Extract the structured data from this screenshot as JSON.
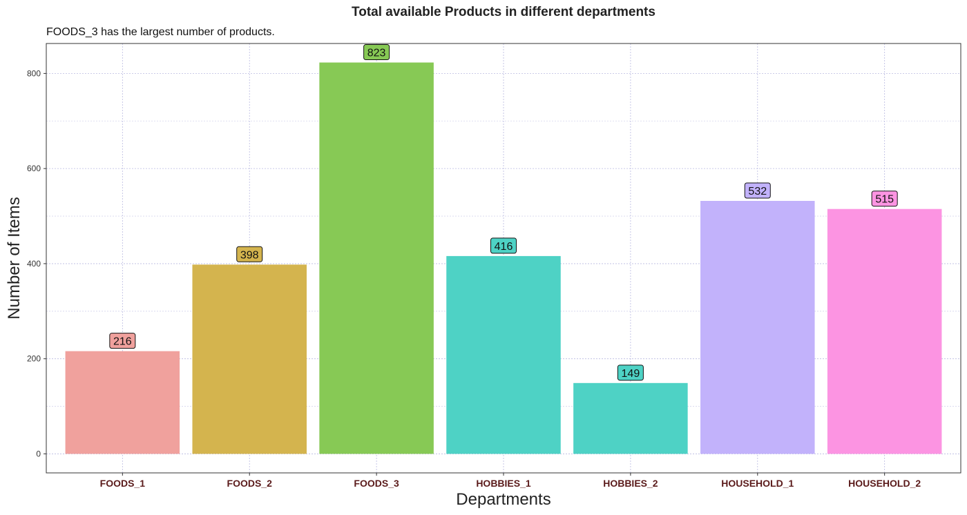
{
  "chart_data": {
    "type": "bar",
    "title": "Total available Products in different departments",
    "subtitle": "FOODS_3 has the largest number of products.",
    "xlabel": "Departments",
    "ylabel": "Number of Items",
    "categories": [
      "FOODS_1",
      "FOODS_2",
      "FOODS_3",
      "HOBBIES_1",
      "HOBBIES_2",
      "HOUSEHOLD_1",
      "HOUSEHOLD_2"
    ],
    "values": [
      216,
      398,
      823,
      416,
      149,
      532,
      515
    ],
    "colors": [
      "#f0a19d",
      "#d4b44e",
      "#87c955",
      "#4ed2c5",
      "#4ed2c5",
      "#c2b2fb",
      "#fc94e2"
    ],
    "yticks": [
      0,
      200,
      400,
      600,
      800
    ],
    "ylim": [
      -40,
      863
    ],
    "grid": true,
    "legend": "none"
  }
}
